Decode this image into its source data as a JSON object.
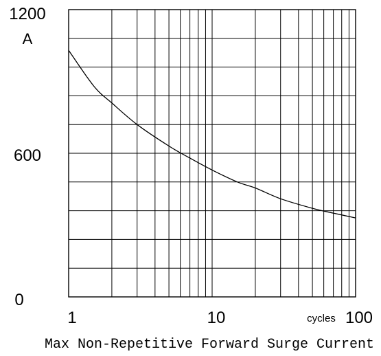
{
  "chart_data": {
    "type": "line",
    "title": "Max Non-Repetitive Forward Surge Current",
    "xlabel": "cycles",
    "ylabel": "A",
    "x_scale": "log",
    "xlim": [
      1,
      100
    ],
    "ylim": [
      0,
      1200
    ],
    "grid": true,
    "x_ticks": [
      "1",
      "10",
      "100"
    ],
    "y_ticks": [
      "0",
      "600",
      "1200"
    ],
    "series": [
      {
        "x": [
          1,
          1.5,
          2,
          3,
          5,
          7,
          10,
          15,
          20,
          30,
          50,
          70,
          100
        ],
        "values": [
          1030,
          880,
          810,
          720,
          630,
          580,
          530,
          480,
          455,
          410,
          370,
          350,
          330
        ]
      }
    ]
  }
}
